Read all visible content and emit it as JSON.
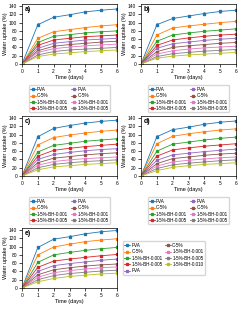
{
  "chart_data": [
    {
      "type": "line",
      "title": "a)",
      "xlabel": "Time (days)",
      "ylabel": "Water uptake (%)",
      "x": [
        0,
        1,
        2,
        3,
        4,
        5,
        6
      ],
      "xlim": [
        0,
        6
      ],
      "xticks": [
        0,
        1,
        2,
        3,
        4,
        5,
        6
      ],
      "ylim": [
        0,
        145
      ],
      "yticks": [
        0,
        20,
        40,
        60,
        80,
        100,
        120,
        140
      ],
      "marker": "square",
      "series": [
        {
          "name": "PVA",
          "values": [
            0,
            95,
            113,
            119,
            126,
            130,
            133
          ],
          "errors": [
            0,
            3,
            3,
            3,
            3,
            3,
            3
          ]
        },
        {
          "name": "C-5%",
          "values": [
            0,
            62,
            78,
            83,
            88,
            92,
            95
          ],
          "errors": [
            0,
            2.5,
            2.5,
            2.5,
            2.5,
            2.5,
            2.5
          ]
        },
        {
          "name": "1-5%-BH-0.001",
          "values": [
            0,
            52,
            67,
            71,
            75,
            78,
            80
          ],
          "errors": [
            0,
            2.5,
            2.5,
            2.5,
            2.5,
            2.5,
            2.5
          ]
        },
        {
          "name": "1-5%-BH-0.005",
          "values": [
            0,
            45,
            58,
            62,
            66,
            68,
            70
          ],
          "errors": [
            0,
            2,
            2,
            2,
            2,
            2,
            2
          ]
        },
        {
          "name": "PVA",
          "values": [
            0,
            38,
            50,
            54,
            58,
            60,
            62
          ],
          "errors": [
            0,
            2,
            2,
            2,
            2,
            2,
            2
          ]
        },
        {
          "name": "C-5%",
          "values": [
            0,
            32,
            43,
            47,
            50,
            53,
            55
          ],
          "errors": [
            0,
            2,
            2,
            2,
            2,
            2,
            2
          ]
        },
        {
          "name": "1-5%-BH-0.001",
          "values": [
            0,
            28,
            37,
            41,
            44,
            46,
            48
          ],
          "errors": [
            0,
            2,
            2,
            2,
            2,
            2,
            2
          ]
        },
        {
          "name": "1-5%-BH-0.005",
          "values": [
            0,
            22,
            30,
            34,
            36,
            38,
            40
          ],
          "errors": [
            0,
            2,
            2,
            2,
            2,
            2,
            2
          ]
        },
        {
          "values": [
            0,
            18,
            24,
            27,
            30,
            32,
            34
          ],
          "errors": [
            0,
            2,
            2,
            2,
            2,
            2,
            2
          ]
        }
      ]
    },
    {
      "type": "line",
      "title": "b)",
      "xlabel": "Time (days)",
      "ylabel": "Water uptake (%)",
      "x": [
        0,
        1,
        2,
        3,
        4,
        5,
        6
      ],
      "xlim": [
        0,
        6
      ],
      "xticks": [
        0,
        1,
        2,
        3,
        4,
        5,
        6
      ],
      "ylim": [
        0,
        145
      ],
      "yticks": [
        0,
        20,
        40,
        60,
        80,
        100,
        120,
        140
      ],
      "marker": "square",
      "series": [
        {
          "name": "PVA",
          "values": [
            0,
            95,
            110,
            116,
            122,
            127,
            130
          ],
          "errors": [
            0,
            3,
            3,
            3,
            3,
            3,
            3
          ]
        },
        {
          "name": "C-5%",
          "values": [
            0,
            70,
            87,
            92,
            96,
            100,
            103
          ],
          "errors": [
            0,
            2.5,
            2.5,
            2.5,
            2.5,
            2.5,
            2.5
          ]
        },
        {
          "name": "1-5%-BH-0.001",
          "values": [
            0,
            55,
            70,
            75,
            79,
            82,
            85
          ],
          "errors": [
            0,
            2.5,
            2.5,
            2.5,
            2.5,
            2.5,
            2.5
          ]
        },
        {
          "name": "1-5%-BH-0.005",
          "values": [
            0,
            45,
            58,
            63,
            67,
            70,
            72
          ],
          "errors": [
            0,
            2,
            2,
            2,
            2,
            2,
            2
          ]
        },
        {
          "name": "PVA",
          "values": [
            0,
            38,
            49,
            53,
            57,
            60,
            62
          ],
          "errors": [
            0,
            2,
            2,
            2,
            2,
            2,
            2
          ]
        },
        {
          "name": "C-5%",
          "values": [
            0,
            30,
            40,
            44,
            47,
            50,
            52
          ],
          "errors": [
            0,
            2,
            2,
            2,
            2,
            2,
            2
          ]
        },
        {
          "name": "1-5%-BH-0.001",
          "values": [
            0,
            24,
            32,
            36,
            39,
            41,
            43
          ],
          "errors": [
            0,
            2,
            2,
            2,
            2,
            2,
            2
          ]
        },
        {
          "name": "1-5%-BH-0.005",
          "values": [
            0,
            18,
            25,
            28,
            31,
            33,
            35
          ],
          "errors": [
            0,
            2,
            2,
            2,
            2,
            2,
            2
          ]
        },
        {
          "values": [
            0,
            14,
            19,
            22,
            24,
            26,
            28
          ],
          "errors": [
            0,
            2,
            2,
            2,
            2,
            2,
            2
          ]
        }
      ]
    },
    {
      "type": "line",
      "title": "c)",
      "xlabel": "Time (days)",
      "ylabel": "Water uptake (%)",
      "x": [
        0,
        1,
        2,
        3,
        4,
        5,
        6
      ],
      "xlim": [
        0,
        6
      ],
      "xticks": [
        0,
        1,
        2,
        3,
        4,
        5,
        6
      ],
      "ylim": [
        0,
        145
      ],
      "yticks": [
        0,
        20,
        40,
        60,
        80,
        100,
        120,
        140
      ],
      "marker": "square",
      "series": [
        {
          "name": "PVA",
          "values": [
            0,
            95,
            115,
            122,
            128,
            132,
            135
          ],
          "errors": [
            0,
            3,
            3,
            3,
            3,
            3,
            3
          ]
        },
        {
          "name": "C-5%",
          "values": [
            0,
            75,
            93,
            99,
            104,
            108,
            111
          ],
          "errors": [
            0,
            2.5,
            2.5,
            2.5,
            2.5,
            2.5,
            2.5
          ]
        },
        {
          "name": "1-5%-BH-0.001",
          "values": [
            0,
            58,
            74,
            79,
            84,
            87,
            90
          ],
          "errors": [
            0,
            2.5,
            2.5,
            2.5,
            2.5,
            2.5,
            2.5
          ]
        },
        {
          "name": "1-5%-BH-0.005",
          "values": [
            0,
            48,
            62,
            67,
            71,
            74,
            77
          ],
          "errors": [
            0,
            2,
            2,
            2,
            2,
            2,
            2
          ]
        },
        {
          "name": "PVA",
          "values": [
            0,
            40,
            52,
            57,
            61,
            64,
            66
          ],
          "errors": [
            0,
            2,
            2,
            2,
            2,
            2,
            2
          ]
        },
        {
          "name": "C-5%",
          "values": [
            0,
            32,
            43,
            47,
            51,
            54,
            56
          ],
          "errors": [
            0,
            2,
            2,
            2,
            2,
            2,
            2
          ]
        },
        {
          "name": "1-5%-BH-0.001",
          "values": [
            0,
            26,
            35,
            39,
            42,
            44,
            46
          ],
          "errors": [
            0,
            2,
            2,
            2,
            2,
            2,
            2
          ]
        },
        {
          "name": "1-5%-BH-0.005",
          "values": [
            0,
            20,
            28,
            32,
            35,
            37,
            39
          ],
          "errors": [
            0,
            2,
            2,
            2,
            2,
            2,
            2
          ]
        },
        {
          "values": [
            0,
            15,
            22,
            25,
            28,
            30,
            32
          ],
          "errors": [
            0,
            2,
            2,
            2,
            2,
            2,
            2
          ]
        }
      ]
    },
    {
      "type": "line",
      "title": "d)",
      "xlabel": "Time (days)",
      "ylabel": "Water uptake (%)",
      "x": [
        0,
        1,
        2,
        3,
        4,
        5,
        6
      ],
      "xlim": [
        0,
        6
      ],
      "xticks": [
        0,
        1,
        2,
        3,
        4,
        5,
        6
      ],
      "ylim": [
        0,
        145
      ],
      "yticks": [
        0,
        20,
        40,
        60,
        80,
        100,
        120,
        140
      ],
      "marker": "square",
      "series": [
        {
          "name": "PVA",
          "values": [
            0,
            95,
            112,
            118,
            125,
            130,
            133
          ],
          "errors": [
            0,
            3,
            3,
            3,
            3,
            3,
            3
          ]
        },
        {
          "name": "C-5%",
          "values": [
            0,
            78,
            96,
            102,
            107,
            111,
            114
          ],
          "errors": [
            0,
            2.5,
            2.5,
            2.5,
            2.5,
            2.5,
            2.5
          ]
        },
        {
          "name": "1-5%-BH-0.001",
          "values": [
            0,
            60,
            77,
            82,
            87,
            91,
            94
          ],
          "errors": [
            0,
            2.5,
            2.5,
            2.5,
            2.5,
            2.5,
            2.5
          ]
        },
        {
          "name": "1-5%-BH-0.005",
          "values": [
            0,
            48,
            63,
            68,
            72,
            75,
            78
          ],
          "errors": [
            0,
            2,
            2,
            2,
            2,
            2,
            2
          ]
        },
        {
          "name": "PVA",
          "values": [
            0,
            38,
            51,
            55,
            59,
            62,
            65
          ],
          "errors": [
            0,
            2,
            2,
            2,
            2,
            2,
            2
          ]
        },
        {
          "name": "C-5%",
          "values": [
            0,
            30,
            42,
            46,
            50,
            53,
            55
          ],
          "errors": [
            0,
            2,
            2,
            2,
            2,
            2,
            2
          ]
        },
        {
          "name": "1-5%-BH-0.001",
          "values": [
            0,
            24,
            34,
            38,
            41,
            44,
            46
          ],
          "errors": [
            0,
            2,
            2,
            2,
            2,
            2,
            2
          ]
        },
        {
          "name": "1-5%-BH-0.005",
          "values": [
            0,
            18,
            27,
            31,
            34,
            37,
            39
          ],
          "errors": [
            0,
            2,
            2,
            2,
            2,
            2,
            2
          ]
        },
        {
          "values": [
            0,
            13,
            21,
            25,
            28,
            30,
            32
          ],
          "errors": [
            0,
            2,
            2,
            2,
            2,
            2,
            2
          ]
        }
      ]
    },
    {
      "type": "line",
      "title": "e)",
      "xlabel": "Time (days)",
      "ylabel": "Water uptake (%)",
      "x": [
        0,
        1,
        2,
        3,
        4,
        5,
        6
      ],
      "xlim": [
        0,
        6
      ],
      "xticks": [
        0,
        1,
        2,
        3,
        4,
        5,
        6
      ],
      "ylim": [
        0,
        145
      ],
      "yticks": [
        0,
        20,
        40,
        60,
        80,
        100,
        120,
        140
      ],
      "marker": "square",
      "series": [
        {
          "name": "PVA",
          "values": [
            0,
            98,
            118,
            124,
            131,
            136,
            139
          ],
          "errors": [
            0,
            3,
            3,
            3,
            3,
            3,
            3
          ]
        },
        {
          "name": "C-5%",
          "values": [
            0,
            80,
            99,
            106,
            112,
            116,
            119
          ],
          "errors": [
            0,
            2.5,
            2.5,
            2.5,
            2.5,
            2.5,
            2.5
          ]
        },
        {
          "name": "1-5%-BH-0.001",
          "values": [
            0,
            62,
            80,
            86,
            91,
            95,
            98
          ],
          "errors": [
            0,
            2.5,
            2.5,
            2.5,
            2.5,
            2.5,
            2.5
          ]
        },
        {
          "name": "1-5%-BH-0.005",
          "values": [
            0,
            50,
            65,
            70,
            74,
            78,
            81
          ],
          "errors": [
            0,
            2,
            2,
            2,
            2,
            2,
            2
          ]
        },
        {
          "name": "PVA",
          "values": [
            0,
            40,
            54,
            59,
            63,
            67,
            70
          ],
          "errors": [
            0,
            2,
            2,
            2,
            2,
            2,
            2
          ]
        },
        {
          "name": "C-5%",
          "values": [
            0,
            32,
            44,
            49,
            53,
            56,
            58
          ],
          "errors": [
            0,
            2,
            2,
            2,
            2,
            2,
            2
          ]
        },
        {
          "name": "1-5%-BH-0.001",
          "values": [
            0,
            26,
            37,
            42,
            46,
            49,
            51
          ],
          "errors": [
            0,
            2,
            2,
            2,
            2,
            2,
            2
          ]
        },
        {
          "name": "1-5%-BH-0.005",
          "values": [
            0,
            20,
            30,
            35,
            38,
            41,
            43
          ],
          "errors": [
            0,
            2,
            2,
            2,
            2,
            2,
            2
          ]
        },
        {
          "name": "1-5%-BH-0.010",
          "values": [
            0,
            15,
            23,
            28,
            31,
            34,
            36
          ],
          "errors": [
            0,
            2,
            2,
            2,
            2,
            2,
            2
          ]
        }
      ]
    }
  ]
}
